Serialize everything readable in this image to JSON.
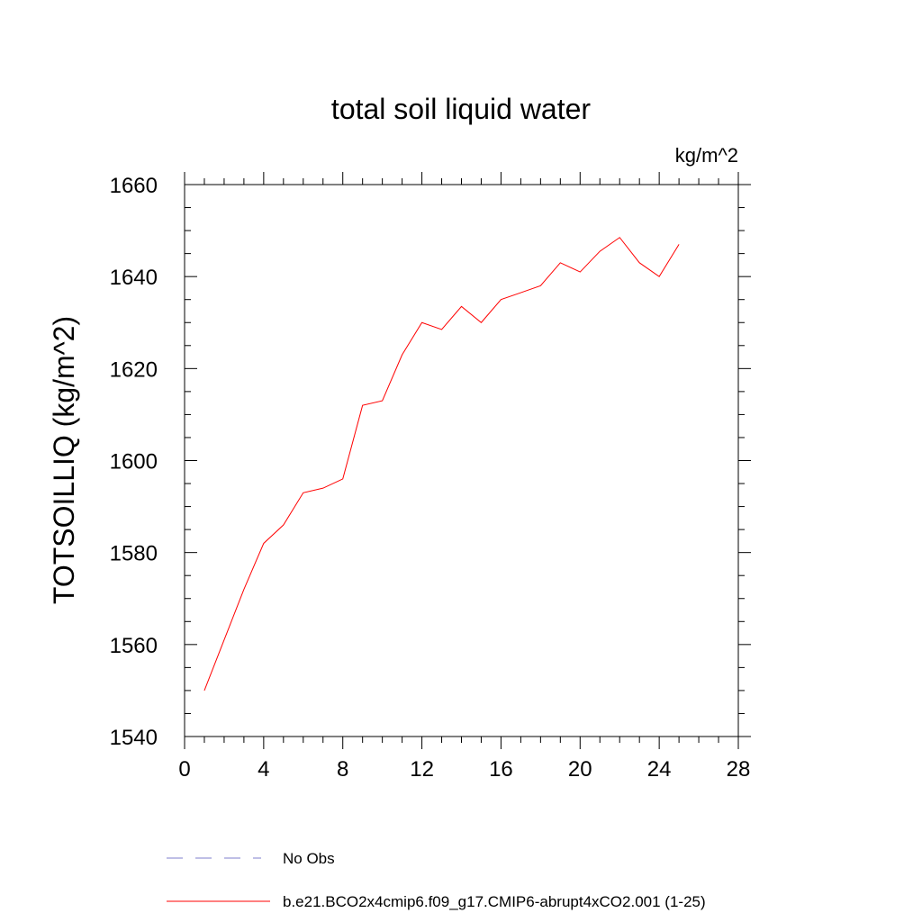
{
  "chart_data": {
    "type": "line",
    "title": "total soil liquid water",
    "units_label": "kg/m^2",
    "xlabel": "",
    "ylabel": "TOTSOILLIQ  (kg/m^2)",
    "xlim": [
      0,
      28
    ],
    "ylim": [
      1540,
      1660
    ],
    "x_ticks": [
      0,
      4,
      8,
      12,
      16,
      20,
      24,
      28
    ],
    "y_ticks": [
      1540,
      1560,
      1580,
      1600,
      1620,
      1640,
      1660
    ],
    "x_tick_labels": [
      "0",
      "4",
      "8",
      "12",
      "16",
      "20",
      "24",
      "28"
    ],
    "y_tick_labels": [
      "1540",
      "1560",
      "1580",
      "1600",
      "1620",
      "1640",
      "1660"
    ],
    "grid": false,
    "legend_position": "bottom",
    "series": [
      {
        "name": "b.e21.BCO2x4cmip6.f09_g17.CMIP6-abrupt4xCO2.001 (1-25)",
        "color": "#ff0000",
        "style": "solid",
        "x": [
          1,
          2,
          3,
          4,
          5,
          6,
          7,
          8,
          9,
          10,
          11,
          12,
          13,
          14,
          15,
          16,
          17,
          18,
          19,
          20,
          21,
          22,
          23,
          24,
          25
        ],
        "values": [
          1550,
          1561,
          1572,
          1582,
          1586,
          1593,
          1594,
          1596,
          1612,
          1613,
          1623,
          1630,
          1628.5,
          1633.5,
          1630,
          1635,
          1636.5,
          1638,
          1643,
          1641,
          1645.5,
          1648.5,
          1643,
          1640,
          1647
        ]
      }
    ],
    "legend": [
      {
        "label": "No Obs",
        "color": "#7f7fcc",
        "style": "dashed"
      },
      {
        "label": "b.e21.BCO2x4cmip6.f09_g17.CMIP6-abrupt4xCO2.001 (1-25)",
        "color": "#ff0000",
        "style": "solid"
      }
    ]
  }
}
